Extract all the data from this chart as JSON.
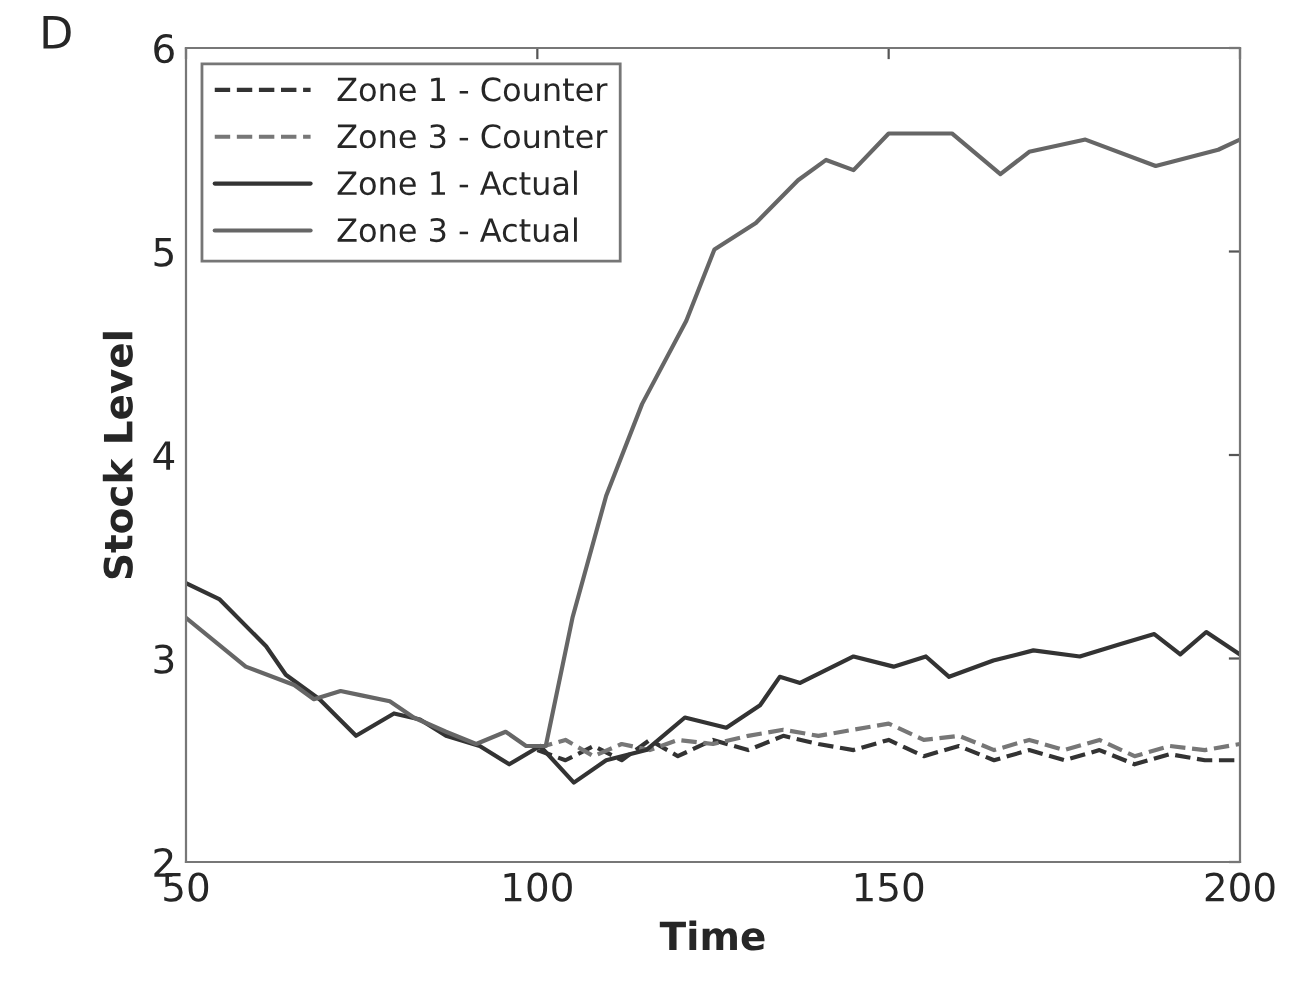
{
  "chart_data": {
    "type": "line",
    "title": "D",
    "xlabel": "Time",
    "ylabel": "Stock Level",
    "xlim": [
      50,
      200
    ],
    "xticks": [
      50,
      100,
      150,
      200
    ],
    "ylim": [
      2,
      6
    ],
    "yticks": [
      2,
      3,
      4,
      5,
      6
    ],
    "grid": false,
    "legend": "top left",
    "marker": "none",
    "series": [
      {
        "name": "Zone 1 - Counter",
        "color": "#333333",
        "line_style": "dashed",
        "x": [
          100,
          104,
          108,
          112,
          116,
          120,
          125,
          130,
          135,
          140,
          145,
          150,
          155,
          160,
          165,
          170,
          175,
          180,
          185,
          190,
          195,
          200
        ],
        "values": [
          2.55,
          2.5,
          2.57,
          2.5,
          2.6,
          2.52,
          2.6,
          2.55,
          2.62,
          2.58,
          2.55,
          2.6,
          2.52,
          2.57,
          2.5,
          2.55,
          2.5,
          2.55,
          2.48,
          2.53,
          2.5,
          2.5
        ]
      },
      {
        "name": "Zone 3 - Counter",
        "color": "#777777",
        "line_style": "dashed",
        "x": [
          100,
          104,
          108,
          112,
          116,
          120,
          125,
          130,
          135,
          140,
          145,
          150,
          155,
          160,
          165,
          170,
          175,
          180,
          185,
          190,
          195,
          200
        ],
        "values": [
          2.56,
          2.6,
          2.52,
          2.58,
          2.55,
          2.6,
          2.58,
          2.62,
          2.65,
          2.62,
          2.65,
          2.68,
          2.6,
          2.62,
          2.55,
          2.6,
          2.55,
          2.6,
          2.52,
          2.57,
          2.55,
          2.58
        ]
      },
      {
        "name": "Zone 1 - Actual",
        "color": "#333333",
        "line_style": "solid",
        "x": [
          50,
          54.8,
          61.4,
          64.2,
          69,
          74.2,
          79.6,
          83.3,
          87,
          91.8,
          96,
          100.4,
          105.2,
          109.8,
          115.5,
          121,
          126.9,
          131.7,
          134.5,
          137.4,
          145,
          150.7,
          155.3,
          158.6,
          164.9,
          170.6,
          177.2,
          182.9,
          187.8,
          191.5,
          195.2,
          200
        ],
        "values": [
          3.37,
          3.29,
          3.06,
          2.92,
          2.8,
          2.62,
          2.73,
          2.7,
          2.62,
          2.57,
          2.48,
          2.57,
          2.39,
          2.5,
          2.55,
          2.71,
          2.66,
          2.77,
          2.91,
          2.88,
          3.01,
          2.96,
          3.01,
          2.91,
          2.99,
          3.04,
          3.01,
          3.07,
          3.12,
          3.02,
          3.13,
          3.02
        ]
      },
      {
        "name": "Zone 3 - Actual",
        "color": "#666666",
        "line_style": "solid",
        "x": [
          50,
          58.5,
          65.4,
          68.2,
          72,
          74.8,
          79,
          82.4,
          87,
          91.3,
          95.5,
          98.4,
          101.2,
          105,
          109.8,
          114.9,
          121.2,
          125.2,
          131.1,
          137.1,
          141.1,
          145,
          150,
          159,
          165.9,
          170,
          178,
          188,
          196.9,
          200
        ],
        "values": [
          3.2,
          2.96,
          2.87,
          2.8,
          2.84,
          2.82,
          2.79,
          2.71,
          2.64,
          2.58,
          2.64,
          2.57,
          2.57,
          3.2,
          3.8,
          4.25,
          4.66,
          5.01,
          5.14,
          5.35,
          5.45,
          5.4,
          5.58,
          5.58,
          5.38,
          5.49,
          5.55,
          5.42,
          5.5,
          5.55
        ]
      }
    ]
  }
}
